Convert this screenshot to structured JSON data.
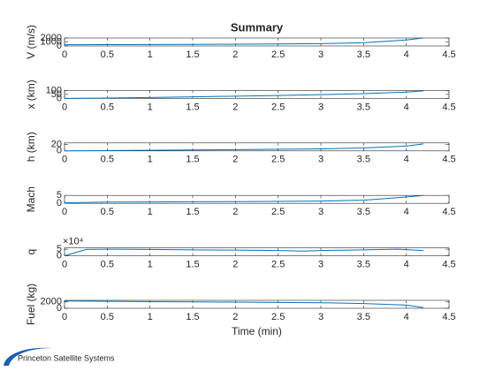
{
  "chart_data": [
    {
      "type": "line",
      "title": "Summary",
      "ylabel": "V (m/s)",
      "xlim": [
        0,
        4.5
      ],
      "xticks": [
        0,
        0.5,
        1,
        1.5,
        2,
        2.5,
        3,
        3.5,
        4,
        4.5
      ],
      "ylim": [
        0,
        2000
      ],
      "yticks": [
        0,
        1000,
        2000
      ],
      "x": [
        0,
        0.5,
        1,
        1.5,
        2,
        2.5,
        3,
        3.5,
        4,
        4.2
      ],
      "series": [
        {
          "color": "#0072bd",
          "values": [
            300,
            330,
            360,
            400,
            440,
            500,
            580,
            800,
            1500,
            2000
          ]
        }
      ]
    },
    {
      "type": "line",
      "ylabel": "x (km)",
      "xlim": [
        0,
        4.5
      ],
      "xticks": [
        0,
        0.5,
        1,
        1.5,
        2,
        2.5,
        3,
        3.5,
        4,
        4.5
      ],
      "ylim": [
        0,
        100
      ],
      "yticks": [
        0,
        50,
        100
      ],
      "x": [
        0,
        0.5,
        1,
        1.5,
        2,
        2.5,
        3,
        3.5,
        4,
        4.2
      ],
      "series": [
        {
          "color": "#0072bd",
          "values": [
            0,
            5,
            12,
            20,
            28,
            37,
            47,
            60,
            80,
            95
          ]
        }
      ]
    },
    {
      "type": "line",
      "ylabel": "h (km)",
      "xlim": [
        0,
        4.5
      ],
      "xticks": [
        0,
        0.5,
        1,
        1.5,
        2,
        2.5,
        3,
        3.5,
        4,
        4.5
      ],
      "ylim": [
        0,
        25
      ],
      "yticks": [
        0,
        20
      ],
      "x": [
        0,
        0.5,
        1,
        1.5,
        2,
        2.5,
        3,
        3.5,
        4,
        4.2
      ],
      "series": [
        {
          "color": "#0072bd",
          "values": [
            0,
            1,
            2,
            3,
            4,
            5,
            6.5,
            9,
            15,
            22
          ]
        }
      ]
    },
    {
      "type": "line",
      "ylabel": "Mach",
      "xlim": [
        0,
        4.5
      ],
      "xticks": [
        0,
        0.5,
        1,
        1.5,
        2,
        2.5,
        3,
        3.5,
        4,
        4.5
      ],
      "ylim": [
        0,
        5
      ],
      "yticks": [
        0,
        5
      ],
      "x": [
        0,
        0.5,
        1,
        1.5,
        2,
        2.5,
        3,
        3.5,
        4,
        4.2
      ],
      "series": [
        {
          "color": "#0072bd",
          "values": [
            0.3,
            0.8,
            0.9,
            1,
            1.1,
            1.2,
            1.4,
            2,
            4,
            5
          ]
        }
      ]
    },
    {
      "type": "line",
      "ylabel": "q",
      "y_exponent": "×10⁴",
      "xlim": [
        0,
        4.5
      ],
      "xticks": [
        0,
        0.5,
        1,
        1.5,
        2,
        2.5,
        3,
        3.5,
        4,
        4.5
      ],
      "ylim": [
        0,
        60000
      ],
      "yticks": [
        0,
        {
          "value": 50000,
          "label": "5"
        }
      ],
      "x": [
        0,
        0.25,
        0.5,
        1,
        1.5,
        2,
        2.5,
        2.8,
        3,
        3.5,
        3.9,
        4.2
      ],
      "series": [
        {
          "color": "#0072bd",
          "values": [
            0,
            48000,
            50000,
            48000,
            45000,
            43000,
            40000,
            36000,
            40000,
            45000,
            50000,
            40000
          ]
        }
      ]
    },
    {
      "type": "line",
      "ylabel": "Fuel (kg)",
      "xlabel": "Time (min)",
      "xlim": [
        0,
        4.5
      ],
      "xticks": [
        0,
        0.5,
        1,
        1.5,
        2,
        2.5,
        3,
        3.5,
        4,
        4.5
      ],
      "ylim": [
        0,
        2500
      ],
      "yticks": [
        0,
        2000
      ],
      "x": [
        0,
        0.5,
        1,
        1.5,
        2,
        2.5,
        3,
        3.5,
        4,
        4.2
      ],
      "series": [
        {
          "color": "#0072bd",
          "values": [
            2300,
            2200,
            2100,
            2000,
            1950,
            1850,
            1750,
            1500,
            1000,
            200
          ]
        }
      ]
    }
  ],
  "footer": {
    "logo_text": "Princeton Satellite Systems"
  }
}
